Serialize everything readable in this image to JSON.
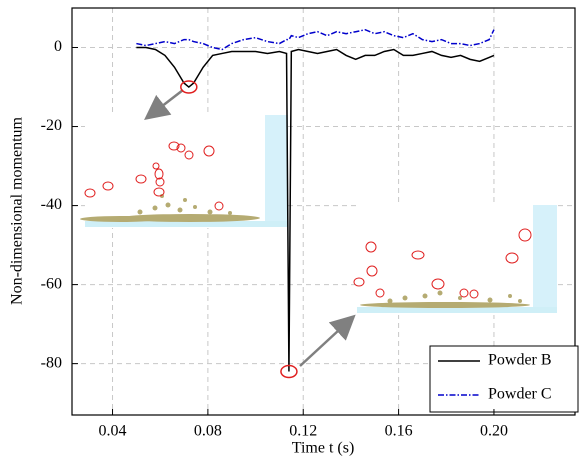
{
  "chart_data": {
    "type": "line",
    "x_label": "Time t (s)",
    "y_label": "Non-dimensional momentum",
    "x": [
      0.05,
      0.054,
      0.058,
      0.062,
      0.066,
      0.07,
      0.072,
      0.074,
      0.078,
      0.082,
      0.086,
      0.09,
      0.095,
      0.1,
      0.105,
      0.11,
      0.113,
      0.114,
      0.115,
      0.118,
      0.122,
      0.126,
      0.13,
      0.134,
      0.138,
      0.142,
      0.146,
      0.15,
      0.154,
      0.158,
      0.162,
      0.166,
      0.17,
      0.174,
      0.178,
      0.182,
      0.186,
      0.19,
      0.194,
      0.198,
      0.2
    ],
    "series": [
      {
        "name": "Powder B",
        "color": "#000000",
        "dash": "solid",
        "values": [
          0,
          0,
          -0.5,
          -2,
          -5,
          -9,
          -10,
          -9,
          -5,
          -2,
          -1.5,
          -1,
          -1,
          -1,
          -1.5,
          -1,
          -1.5,
          -82,
          -1,
          -0.5,
          -1,
          -1.5,
          -1,
          -0.5,
          -2,
          -3,
          -2,
          -2,
          -1,
          -0.5,
          -2,
          -2,
          -1.5,
          -1,
          -2,
          -2.5,
          -2,
          -3,
          -3.5,
          -2.5,
          -2
        ]
      },
      {
        "name": "Powder C",
        "color": "#0000cc",
        "dash": "dashdot",
        "values": [
          1,
          0.5,
          1,
          1.5,
          1,
          2,
          2,
          1.5,
          1,
          0,
          -0.5,
          1,
          2,
          2.5,
          1.5,
          1,
          2,
          2,
          3,
          2.5,
          3.5,
          4,
          3,
          4,
          3.5,
          4,
          4.5,
          3.5,
          4,
          3,
          2.5,
          3.5,
          2,
          1.5,
          2,
          1,
          1,
          0.5,
          1,
          2,
          4.5
        ]
      }
    ],
    "xlim": [
      0.023,
      0.234
    ],
    "ylim": [
      -93,
      10
    ],
    "xticks": [
      0.04,
      0.08,
      0.12,
      0.16,
      {
        "value": 0.2,
        "label": "0.20"
      }
    ],
    "yticks": [
      0,
      -20,
      -40,
      -60,
      -80
    ],
    "grid": true,
    "legend": "lower right"
  }
}
